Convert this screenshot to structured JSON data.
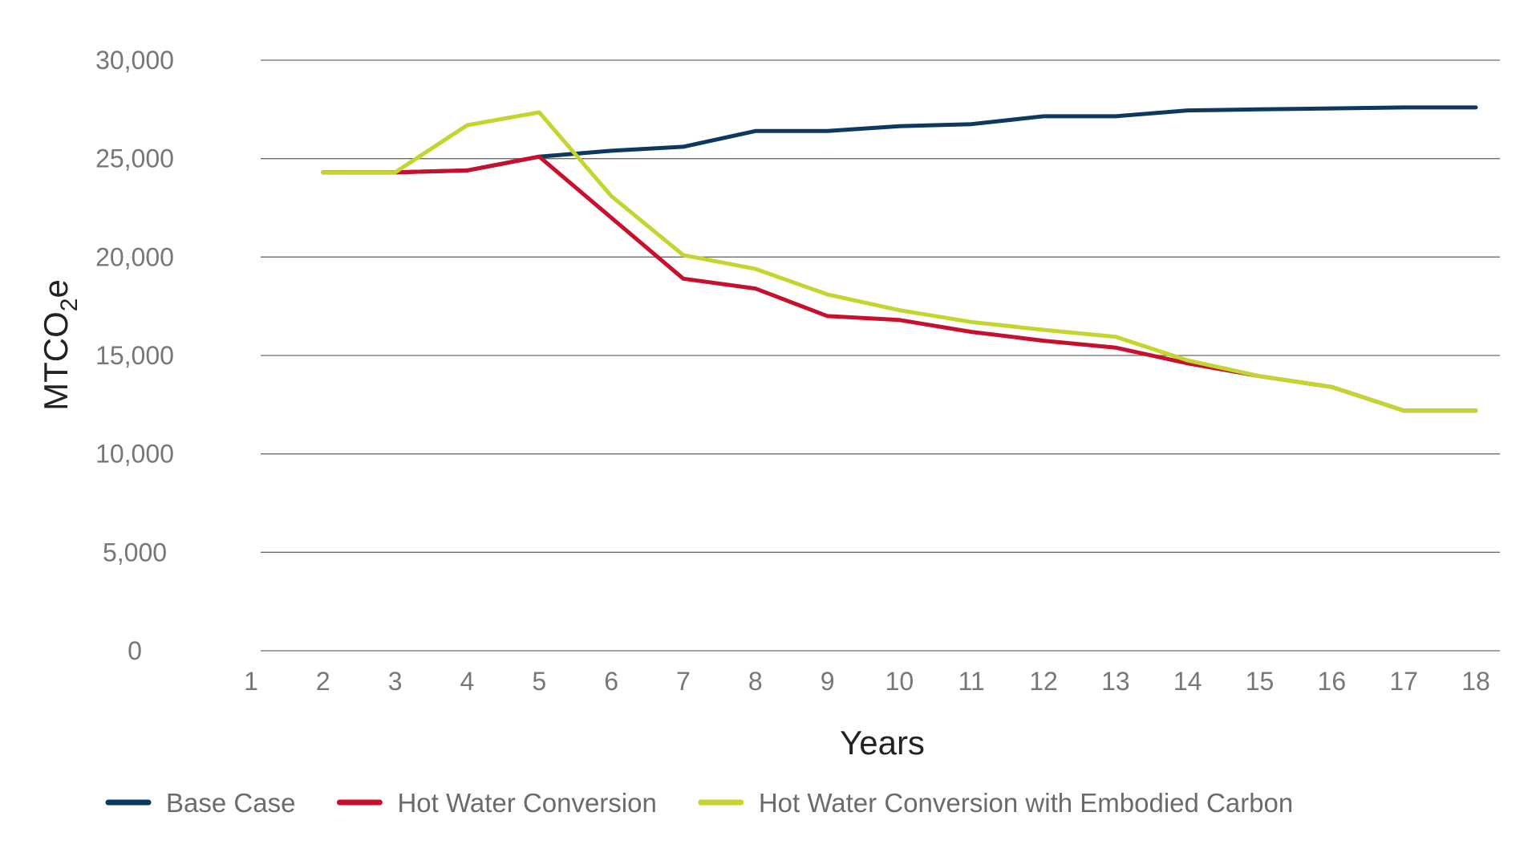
{
  "chart_data": {
    "type": "line",
    "xlabel": "Years",
    "ylabel_main": "MTCO",
    "ylabel_sub": "2",
    "ylabel_tail": "e",
    "ylim": [
      0,
      30000
    ],
    "yticks": [
      0,
      5000,
      10000,
      15000,
      20000,
      25000,
      30000
    ],
    "ytick_labels": [
      "0",
      "5,000",
      "10,000",
      "15,000",
      "20,000",
      "25,000",
      "30,000"
    ],
    "xticks": [
      1,
      2,
      3,
      4,
      5,
      6,
      7,
      8,
      9,
      10,
      11,
      12,
      13,
      14,
      15,
      16,
      17,
      18
    ],
    "grid": true,
    "legend_position": "bottom",
    "series": [
      {
        "name": "Base Case",
        "color": "#0d3860",
        "points": [
          [
            2,
            24300
          ],
          [
            3,
            24300
          ],
          [
            4,
            24400
          ],
          [
            5,
            25100
          ],
          [
            6,
            25400
          ],
          [
            7,
            25600
          ],
          [
            8,
            26400
          ],
          [
            9,
            26400
          ],
          [
            10,
            26650
          ],
          [
            11,
            26750
          ],
          [
            12,
            27150
          ],
          [
            13,
            27150
          ],
          [
            14,
            27450
          ],
          [
            15,
            27500
          ],
          [
            16,
            27550
          ],
          [
            17,
            27600
          ],
          [
            18,
            27600
          ]
        ]
      },
      {
        "name": "Hot Water Conversion",
        "color": "#c8102e",
        "points": [
          [
            2,
            24300
          ],
          [
            3,
            24300
          ],
          [
            4,
            24400
          ],
          [
            5,
            25100
          ],
          [
            6,
            22000
          ],
          [
            7,
            18900
          ],
          [
            8,
            18400
          ],
          [
            9,
            17000
          ],
          [
            10,
            16800
          ],
          [
            11,
            16200
          ],
          [
            12,
            15750
          ],
          [
            13,
            15400
          ],
          [
            14,
            14600
          ],
          [
            15,
            13950
          ],
          [
            16,
            13400
          ],
          [
            17,
            12200
          ],
          [
            18,
            12200
          ]
        ]
      },
      {
        "name": "Hot Water Conversion with Embodied Carbon",
        "color": "#c3d52e",
        "points": [
          [
            2,
            24300
          ],
          [
            3,
            24300
          ],
          [
            4,
            26700
          ],
          [
            5,
            27350
          ],
          [
            6,
            23100
          ],
          [
            7,
            20100
          ],
          [
            8,
            19400
          ],
          [
            9,
            18100
          ],
          [
            10,
            17300
          ],
          [
            11,
            16700
          ],
          [
            12,
            16300
          ],
          [
            13,
            15950
          ],
          [
            14,
            14750
          ],
          [
            15,
            13950
          ],
          [
            16,
            13400
          ],
          [
            17,
            12200
          ],
          [
            18,
            12200
          ]
        ]
      }
    ]
  }
}
